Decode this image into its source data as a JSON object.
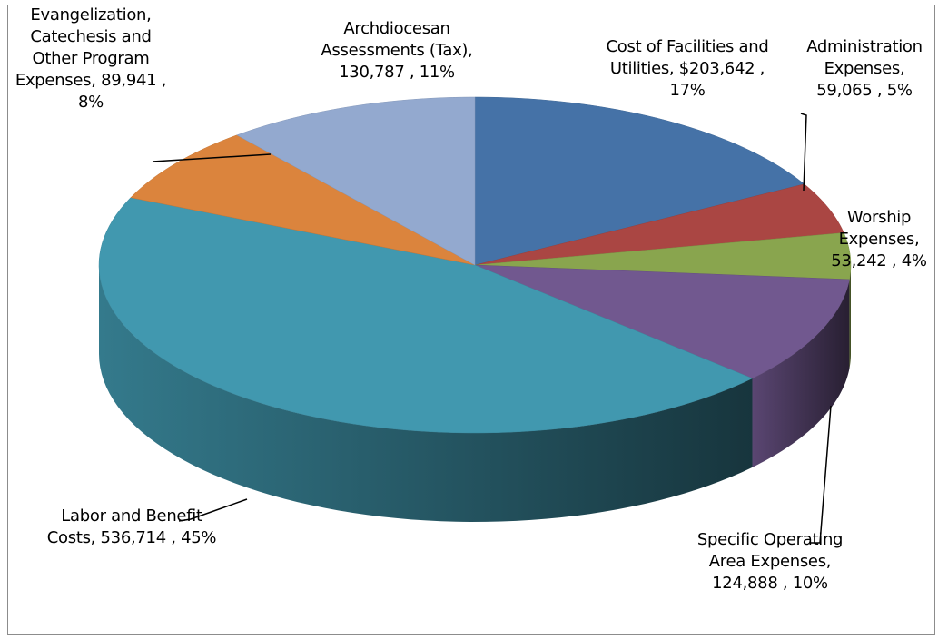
{
  "chart_data": {
    "type": "pie3d",
    "categories": [
      "Cost of Facilities and Utilities,",
      "Administration Expenses,",
      "Worship Expenses,",
      "Specific Operating Area Expenses,",
      "Labor and Benefit Costs,",
      "Evangelization, Catechesis and Other Program Expenses,",
      "Archdiocesan Assessments (Tax),"
    ],
    "values": [
      203642,
      59065,
      53242,
      124888,
      536714,
      89941,
      130787
    ],
    "value_labels": [
      "$203,642 ,",
      "59,065 ,",
      "53,242 ,",
      "124,888 ,",
      "536,714 ,",
      "89,941 ,",
      "130,787 ,"
    ],
    "percents": [
      17,
      5,
      4,
      10,
      45,
      8,
      11
    ],
    "percent_labels": [
      "17%",
      "5%",
      "4%",
      "10%",
      "45%",
      "8%",
      "11%"
    ],
    "colors": [
      "#4572a7",
      "#aa4643",
      "#89a54e",
      "#71588f",
      "#4198af",
      "#db843d",
      "#93a9cf"
    ]
  }
}
